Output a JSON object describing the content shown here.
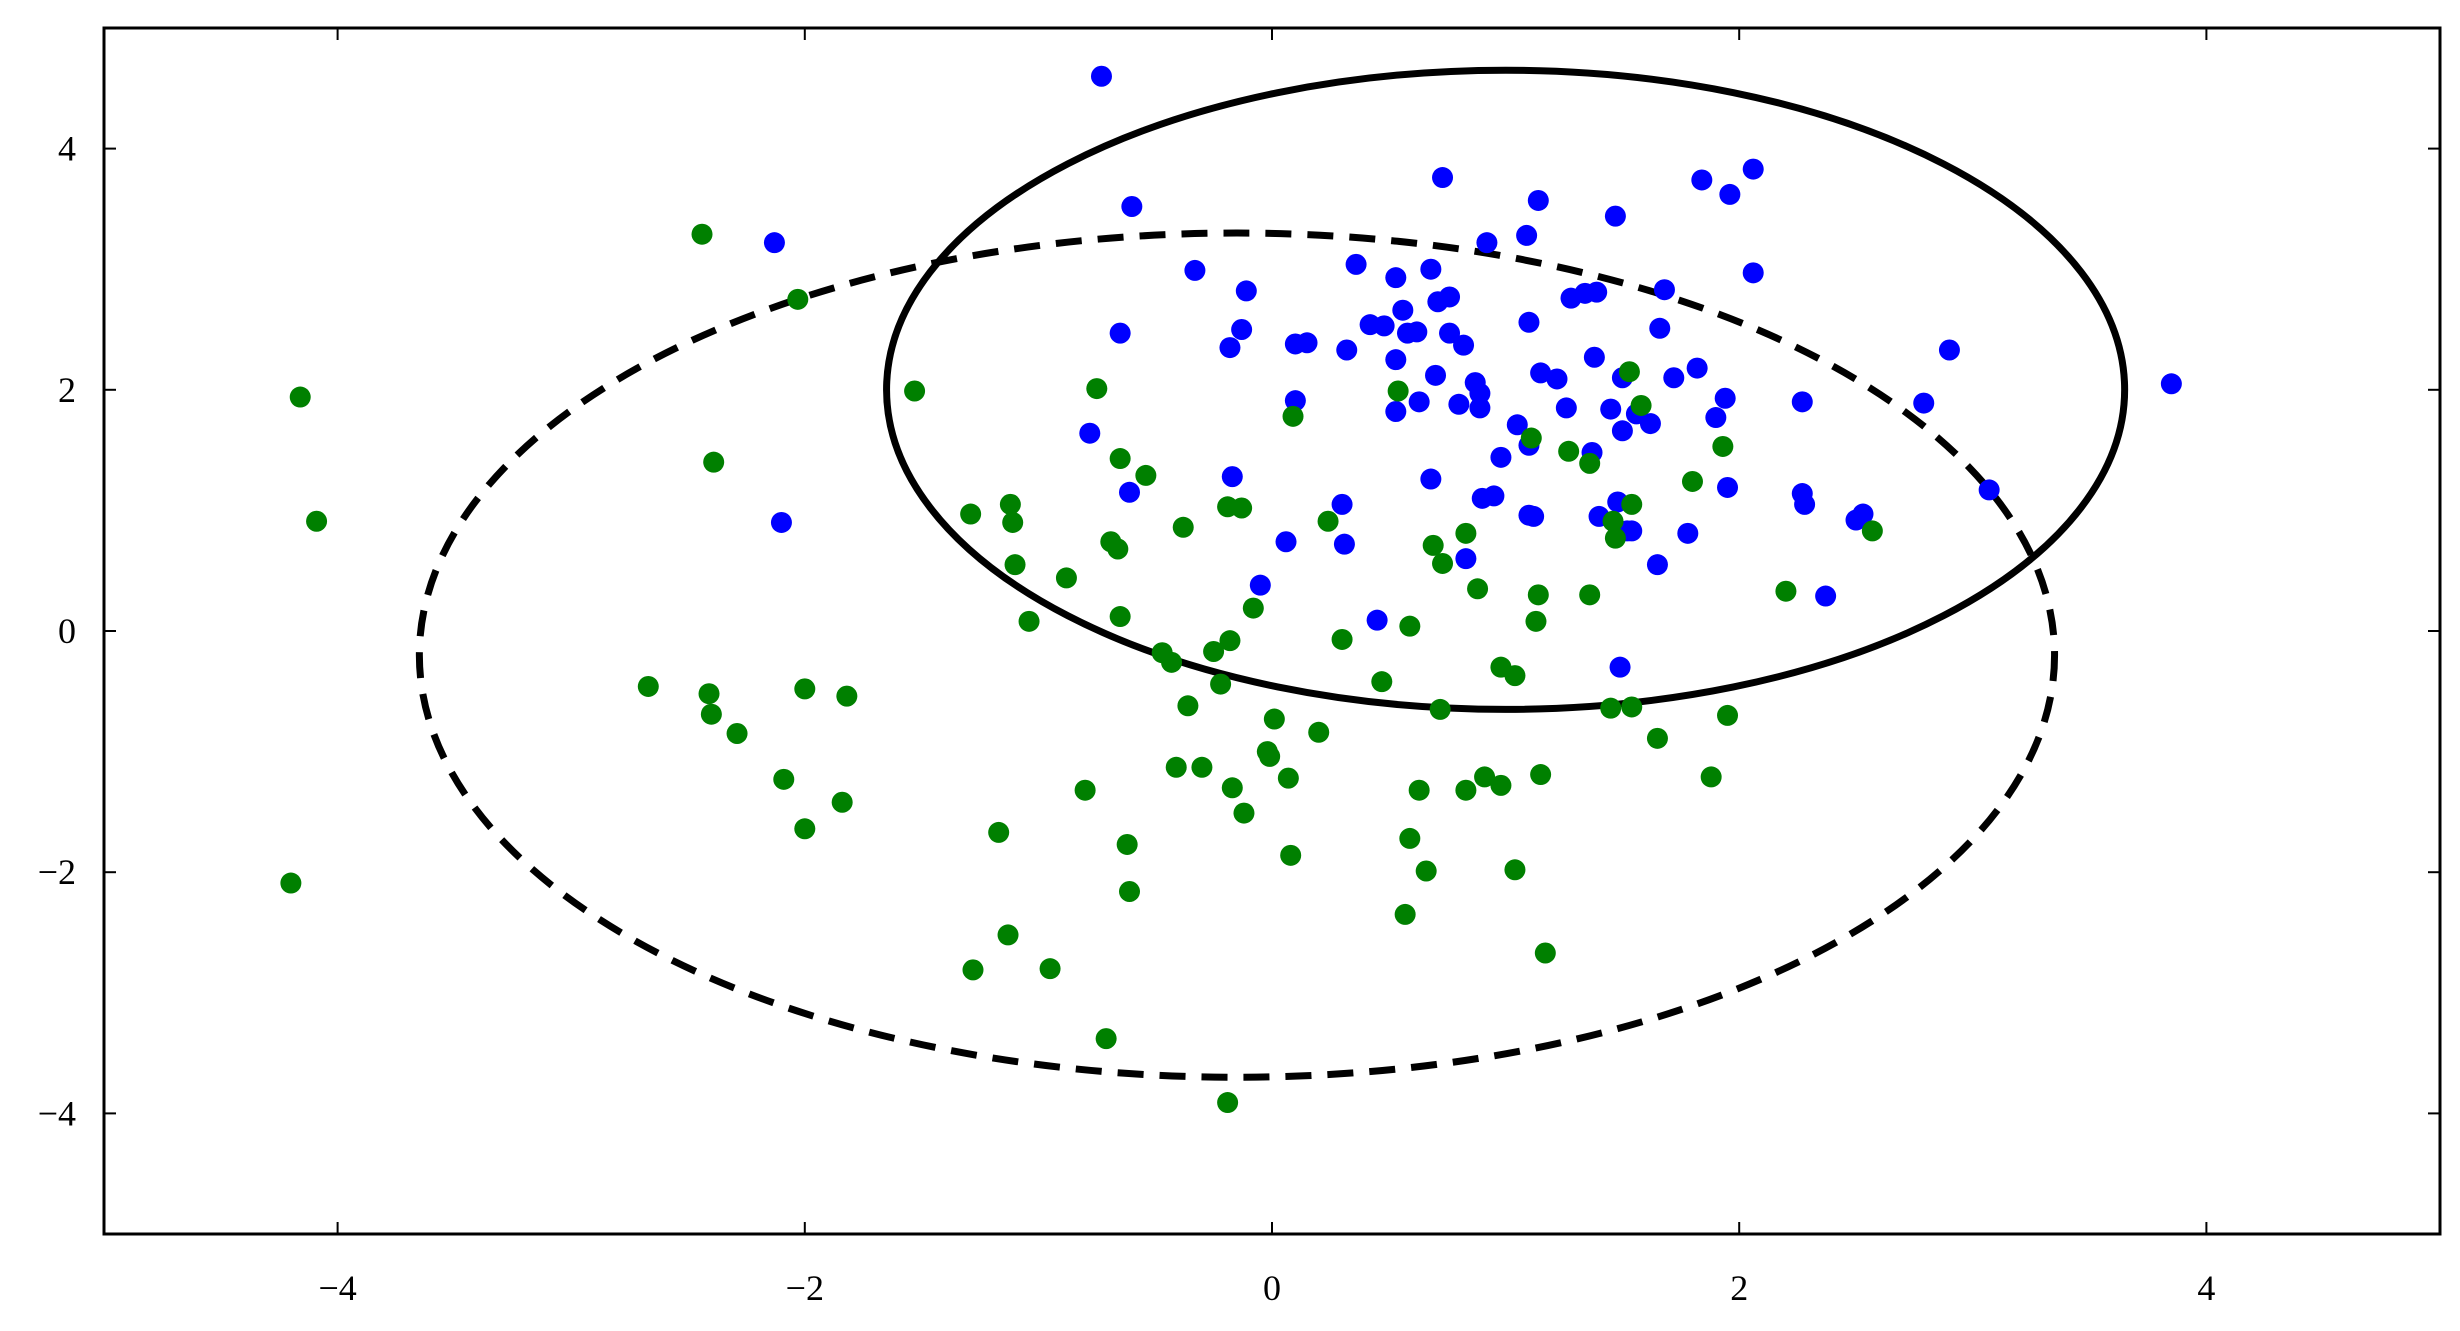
{
  "chart_data": {
    "type": "scatter",
    "title": "",
    "xlabel": "",
    "ylabel": "",
    "xlim": [
      -5,
      5
    ],
    "ylim": [
      -5,
      5
    ],
    "grid": false,
    "xticks": [
      -4,
      -2,
      0,
      2,
      4
    ],
    "yticks": [
      -4,
      -2,
      0,
      2,
      4
    ],
    "xtick_labels": [
      "−4",
      "−2",
      "0",
      "2",
      "4"
    ],
    "ytick_labels": [
      "−4",
      "−2",
      "0",
      "2",
      "4"
    ],
    "series": [
      {
        "color": "#0000ff",
        "points": [
          [
            -0.73,
            4.6
          ],
          [
            -0.6,
            3.52
          ],
          [
            -2.13,
            3.22
          ],
          [
            -0.33,
            2.99
          ],
          [
            -0.11,
            2.82
          ],
          [
            -0.65,
            2.47
          ],
          [
            -0.18,
            2.35
          ],
          [
            -0.13,
            2.5
          ],
          [
            0.1,
            2.38
          ],
          [
            0.15,
            2.39
          ],
          [
            0.36,
            3.04
          ],
          [
            0.32,
            2.33
          ],
          [
            0.42,
            2.54
          ],
          [
            0.48,
            2.53
          ],
          [
            0.53,
            2.93
          ],
          [
            0.56,
            2.66
          ],
          [
            0.58,
            2.47
          ],
          [
            0.62,
            2.48
          ],
          [
            0.53,
            2.25
          ],
          [
            0.68,
            3.0
          ],
          [
            0.71,
            2.73
          ],
          [
            0.76,
            2.77
          ],
          [
            0.76,
            2.47
          ],
          [
            0.82,
            2.37
          ],
          [
            0.73,
            3.76
          ],
          [
            0.92,
            3.22
          ],
          [
            1.09,
            3.28
          ],
          [
            1.14,
            3.57
          ],
          [
            1.1,
            2.56
          ],
          [
            1.28,
            2.76
          ],
          [
            1.34,
            2.8
          ],
          [
            1.39,
            2.81
          ],
          [
            1.47,
            3.44
          ],
          [
            1.68,
            2.83
          ],
          [
            1.66,
            2.51
          ],
          [
            1.84,
            3.74
          ],
          [
            1.96,
            3.62
          ],
          [
            2.06,
            3.83
          ],
          [
            2.06,
            2.97
          ],
          [
            1.38,
            2.27
          ],
          [
            1.5,
            2.1
          ],
          [
            1.72,
            2.1
          ],
          [
            1.82,
            2.18
          ],
          [
            2.9,
            2.33
          ],
          [
            2.79,
            1.89
          ],
          [
            3.85,
            2.05
          ],
          [
            2.27,
            1.9
          ],
          [
            1.94,
            1.93
          ],
          [
            1.9,
            1.77
          ],
          [
            0.7,
            2.12
          ],
          [
            0.87,
            2.06
          ],
          [
            0.89,
            1.97
          ],
          [
            0.8,
            1.88
          ],
          [
            0.89,
            1.85
          ],
          [
            1.05,
            1.71
          ],
          [
            1.15,
            2.14
          ],
          [
            1.22,
            2.09
          ],
          [
            1.26,
            1.85
          ],
          [
            1.45,
            1.84
          ],
          [
            1.56,
            1.8
          ],
          [
            1.62,
            1.72
          ],
          [
            1.5,
            1.66
          ],
          [
            1.1,
            1.54
          ],
          [
            1.37,
            1.48
          ],
          [
            0.98,
            1.44
          ],
          [
            0.53,
            1.82
          ],
          [
            0.63,
            1.9
          ],
          [
            0.1,
            1.91
          ],
          [
            -0.17,
            1.28
          ],
          [
            -0.61,
            1.15
          ],
          [
            -0.78,
            1.64
          ],
          [
            -2.1,
            0.9
          ],
          [
            0.68,
            1.26
          ],
          [
            0.9,
            1.1
          ],
          [
            0.95,
            1.12
          ],
          [
            1.1,
            0.96
          ],
          [
            1.12,
            0.95
          ],
          [
            1.4,
            0.95
          ],
          [
            1.48,
            1.07
          ],
          [
            1.52,
            0.83
          ],
          [
            1.54,
            0.83
          ],
          [
            1.95,
            1.19
          ],
          [
            2.27,
            1.14
          ],
          [
            2.28,
            1.05
          ],
          [
            2.5,
            0.92
          ],
          [
            2.53,
            0.97
          ],
          [
            3.07,
            1.17
          ],
          [
            1.78,
            0.81
          ],
          [
            1.65,
            0.55
          ],
          [
            0.83,
            0.6
          ],
          [
            0.3,
            1.05
          ],
          [
            0.31,
            0.72
          ],
          [
            0.06,
            0.74
          ],
          [
            -0.05,
            0.38
          ],
          [
            0.45,
            0.09
          ],
          [
            1.49,
            -0.3
          ],
          [
            2.37,
            0.29
          ]
        ]
      },
      {
        "color": "#008000",
        "points": [
          [
            -2.44,
            3.29
          ],
          [
            -2.03,
            2.75
          ],
          [
            -4.16,
            1.94
          ],
          [
            -4.09,
            0.91
          ],
          [
            -2.39,
            1.4
          ],
          [
            -1.53,
            1.99
          ],
          [
            -0.75,
            2.01
          ],
          [
            -0.65,
            1.43
          ],
          [
            -0.54,
            1.29
          ],
          [
            -1.29,
            0.97
          ],
          [
            -1.12,
            1.05
          ],
          [
            -1.11,
            0.9
          ],
          [
            -1.1,
            0.55
          ],
          [
            -0.88,
            0.44
          ],
          [
            -0.69,
            0.74
          ],
          [
            -0.66,
            0.68
          ],
          [
            -0.38,
            0.86
          ],
          [
            -0.19,
            1.03
          ],
          [
            -0.13,
            1.02
          ],
          [
            -0.65,
            0.12
          ],
          [
            -1.04,
            0.08
          ],
          [
            -0.47,
            -0.18
          ],
          [
            -0.43,
            -0.26
          ],
          [
            -0.25,
            -0.17
          ],
          [
            -0.18,
            -0.08
          ],
          [
            -0.22,
            -0.44
          ],
          [
            -0.36,
            -0.62
          ],
          [
            -0.08,
            0.19
          ],
          [
            0.01,
            -0.73
          ],
          [
            -0.02,
            -1.0
          ],
          [
            -0.01,
            -1.04
          ],
          [
            0.07,
            -1.22
          ],
          [
            -0.17,
            -1.3
          ],
          [
            -0.12,
            -1.51
          ],
          [
            -0.3,
            -1.13
          ],
          [
            -0.41,
            -1.13
          ],
          [
            -0.8,
            -1.32
          ],
          [
            -0.62,
            -1.77
          ],
          [
            -0.61,
            -2.16
          ],
          [
            -1.17,
            -1.67
          ],
          [
            -1.13,
            -2.52
          ],
          [
            -0.95,
            -2.8
          ],
          [
            -1.28,
            -2.81
          ],
          [
            -0.71,
            -3.38
          ],
          [
            -0.19,
            -3.91
          ],
          [
            0.08,
            -1.86
          ],
          [
            0.2,
            -0.84
          ],
          [
            0.3,
            -0.07
          ],
          [
            0.47,
            -0.42
          ],
          [
            0.59,
            0.04
          ],
          [
            0.24,
            0.91
          ],
          [
            0.09,
            1.78
          ],
          [
            0.54,
            1.99
          ],
          [
            0.69,
            0.71
          ],
          [
            0.73,
            0.56
          ],
          [
            0.83,
            0.81
          ],
          [
            0.88,
            0.35
          ],
          [
            0.72,
            -0.65
          ],
          [
            0.98,
            -0.3
          ],
          [
            1.04,
            -0.37
          ],
          [
            1.13,
            0.08
          ],
          [
            1.14,
            0.3
          ],
          [
            1.36,
            0.3
          ],
          [
            1.46,
            0.91
          ],
          [
            1.54,
            1.05
          ],
          [
            1.58,
            1.87
          ],
          [
            1.53,
            2.15
          ],
          [
            1.36,
            1.39
          ],
          [
            1.27,
            1.49
          ],
          [
            1.11,
            1.6
          ],
          [
            1.47,
            0.77
          ],
          [
            1.8,
            1.24
          ],
          [
            1.93,
            1.53
          ],
          [
            2.2,
            0.33
          ],
          [
            2.57,
            0.83
          ],
          [
            1.45,
            -0.64
          ],
          [
            1.54,
            -0.63
          ],
          [
            1.65,
            -0.89
          ],
          [
            1.95,
            -0.7
          ],
          [
            1.88,
            -1.21
          ],
          [
            1.15,
            -1.19
          ],
          [
            1.04,
            -1.98
          ],
          [
            1.17,
            -2.67
          ],
          [
            0.98,
            -1.28
          ],
          [
            0.91,
            -1.21
          ],
          [
            0.83,
            -1.32
          ],
          [
            0.63,
            -1.32
          ],
          [
            0.59,
            -1.72
          ],
          [
            0.66,
            -1.99
          ],
          [
            0.57,
            -2.35
          ],
          [
            -2.67,
            -0.46
          ],
          [
            -2.41,
            -0.52
          ],
          [
            -2.4,
            -0.69
          ],
          [
            -2.29,
            -0.85
          ],
          [
            -2.0,
            -0.48
          ],
          [
            -1.82,
            -0.54
          ],
          [
            -2.09,
            -1.23
          ],
          [
            -2.0,
            -1.64
          ],
          [
            -1.84,
            -1.42
          ],
          [
            -4.2,
            -2.09
          ]
        ]
      }
    ],
    "ellipses": [
      {
        "style": "solid",
        "center": [
          1.0,
          2.0
        ],
        "rx": 2.65,
        "ry": 2.65
      },
      {
        "style": "dashed",
        "center": [
          -0.15,
          -0.2
        ],
        "rx": 3.5,
        "ry": 3.5
      }
    ]
  }
}
